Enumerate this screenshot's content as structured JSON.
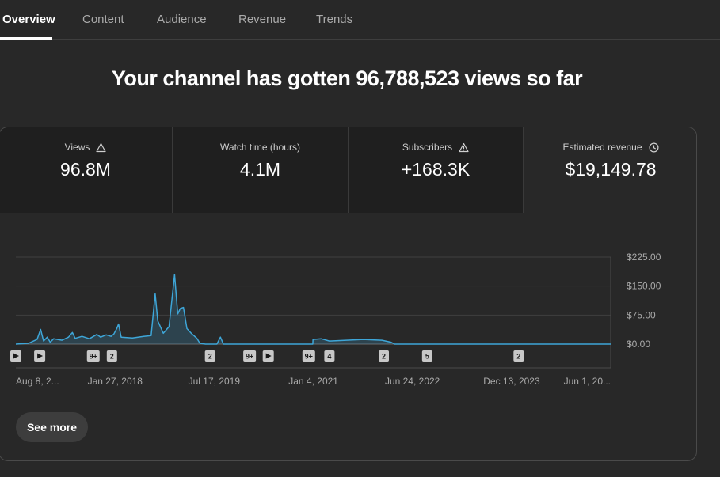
{
  "tabs": [
    {
      "label": "Overview",
      "active": true
    },
    {
      "label": "Content"
    },
    {
      "label": "Audience"
    },
    {
      "label": "Revenue"
    },
    {
      "label": "Trends"
    }
  ],
  "headline": "Your channel has gotten 96,788,523 views so far",
  "metrics": [
    {
      "label": "Views",
      "value": "96.8M",
      "icon": "warning-icon"
    },
    {
      "label": "Watch time (hours)",
      "value": "4.1M"
    },
    {
      "label": "Subscribers",
      "value": "+168.3K",
      "icon": "warning-icon"
    },
    {
      "label": "Estimated revenue",
      "value": "$19,149.78",
      "icon": "clock-icon",
      "selected": true
    }
  ],
  "see_more_label": "See more",
  "colors": {
    "line": "#3ea6d8",
    "background": "#282828",
    "accent": "#ffffff"
  },
  "chart_data": {
    "type": "area",
    "xlabel": "",
    "ylabel": "",
    "y_tick_labels": [
      "$0.00",
      "$75.00",
      "$150.00",
      "$225.00"
    ],
    "y_ticks": [
      0,
      75,
      150,
      225
    ],
    "ylim": [
      0,
      225
    ],
    "x_tick_labels": [
      "Aug 8, 2...",
      "Jan 27, 2018",
      "Jul 17, 2019",
      "Jan 4, 2021",
      "Jun 24, 2022",
      "Dec 13, 2023",
      "Jun 1, 20..."
    ],
    "x_ticks": [
      "2016-08-08",
      "2018-01-27",
      "2019-07-17",
      "2021-01-04",
      "2022-06-24",
      "2023-12-13",
      "2025-06-01"
    ],
    "series": [
      {
        "points": [
          [
            "2016-08-08",
            0
          ],
          [
            "2016-10-15",
            2
          ],
          [
            "2016-12-01",
            12
          ],
          [
            "2016-12-20",
            38
          ],
          [
            "2017-01-05",
            8
          ],
          [
            "2017-01-25",
            18
          ],
          [
            "2017-02-10",
            5
          ],
          [
            "2017-03-01",
            14
          ],
          [
            "2017-04-15",
            10
          ],
          [
            "2017-05-20",
            18
          ],
          [
            "2017-06-10",
            30
          ],
          [
            "2017-06-25",
            15
          ],
          [
            "2017-08-01",
            20
          ],
          [
            "2017-09-10",
            14
          ],
          [
            "2017-10-20",
            25
          ],
          [
            "2017-11-10",
            18
          ],
          [
            "2017-12-10",
            24
          ],
          [
            "2018-01-05",
            20
          ],
          [
            "2018-01-20",
            26
          ],
          [
            "2018-02-05",
            40
          ],
          [
            "2018-02-15",
            52
          ],
          [
            "2018-03-01",
            18
          ],
          [
            "2018-05-01",
            16
          ],
          [
            "2018-07-01",
            20
          ],
          [
            "2018-08-10",
            22
          ],
          [
            "2018-09-01",
            130
          ],
          [
            "2018-09-15",
            60
          ],
          [
            "2018-10-15",
            28
          ],
          [
            "2018-11-15",
            45
          ],
          [
            "2018-12-15",
            180
          ],
          [
            "2019-01-01",
            78
          ],
          [
            "2019-01-15",
            92
          ],
          [
            "2019-02-01",
            95
          ],
          [
            "2019-02-20",
            40
          ],
          [
            "2019-03-15",
            28
          ],
          [
            "2019-04-15",
            15
          ],
          [
            "2019-05-01",
            2
          ],
          [
            "2019-05-31",
            0
          ],
          [
            "2019-08-01",
            0
          ],
          [
            "2019-08-20",
            18
          ],
          [
            "2019-09-05",
            0
          ],
          [
            "2021-01-01",
            0
          ],
          [
            "2021-01-02",
            12
          ],
          [
            "2021-02-15",
            14
          ],
          [
            "2021-04-01",
            8
          ],
          [
            "2021-07-01",
            10
          ],
          [
            "2021-10-01",
            12
          ],
          [
            "2022-01-10",
            10
          ],
          [
            "2022-03-01",
            5
          ],
          [
            "2022-03-20",
            0
          ],
          [
            "2025-06-01",
            0
          ]
        ]
      }
    ],
    "annotations": [
      {
        "date": "2016-08-08",
        "icon": "play-icon"
      },
      {
        "date": "2016-12-15",
        "icon": "play-icon"
      },
      {
        "date": "2017-10-01",
        "label": "9+"
      },
      {
        "date": "2018-01-10",
        "label": "2"
      },
      {
        "date": "2019-06-25",
        "label": "2"
      },
      {
        "date": "2020-01-25",
        "label": "9+"
      },
      {
        "date": "2020-05-05",
        "icon": "play-icon"
      },
      {
        "date": "2020-12-10",
        "label": "9+"
      },
      {
        "date": "2021-04-01",
        "label": "4"
      },
      {
        "date": "2022-01-20",
        "label": "2"
      },
      {
        "date": "2022-09-12",
        "label": "5"
      },
      {
        "date": "2024-01-20",
        "label": "2"
      }
    ]
  }
}
